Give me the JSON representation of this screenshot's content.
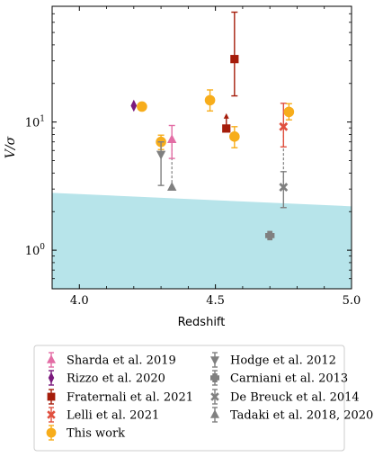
{
  "chart_data": {
    "type": "scatter",
    "xlabel": "Redshift",
    "ylabel": "V/σ",
    "xlim": [
      3.9,
      5.0
    ],
    "ylim": [
      0.5,
      80
    ],
    "yscale": "log",
    "x_ticks": [
      4.0,
      4.5,
      5.0
    ],
    "x_tick_labels": [
      "4.0",
      "4.5",
      "5.0"
    ],
    "y_ticks": [
      1,
      10
    ],
    "y_tick_labels": [
      "10^0",
      "10^1"
    ],
    "shaded_region": {
      "color": "#b7e4ea",
      "upper_boundary": [
        [
          3.9,
          2.8
        ],
        [
          5.0,
          2.2
        ]
      ]
    },
    "legend_placement": "below",
    "series": [
      {
        "name": "Sharda et al. 2019",
        "marker": "triangle-up",
        "color": "#e36da5",
        "points": [
          {
            "x": 4.34,
            "y": 7.3,
            "ylo": 5.2,
            "yhi": 9.4
          }
        ]
      },
      {
        "name": "Rizzo et al. 2020",
        "marker": "thin-diamond",
        "color": "#7b1a7d",
        "points": [
          {
            "x": 4.2,
            "y": 13.4
          }
        ]
      },
      {
        "name": "Fraternali et al. 2021",
        "marker": "square",
        "color": "#a51d0b",
        "points": [
          {
            "x": 4.57,
            "y": 31,
            "ylo": 16,
            "yhi": 72
          },
          {
            "x": 4.54,
            "y": 8.9,
            "lower_limit": true
          }
        ]
      },
      {
        "name": "Lelli et al. 2021",
        "marker": "X",
        "color": "#e0503f",
        "points": [
          {
            "x": 4.75,
            "y": 9.2,
            "ylo": 6.4,
            "yhi": 14
          }
        ]
      },
      {
        "name": "This work",
        "marker": "circle",
        "color": "#f7ad1b",
        "points": [
          {
            "x": 4.23,
            "y": 13.2
          },
          {
            "x": 4.3,
            "y": 7.0,
            "ylo": 6.1,
            "yhi": 7.9
          },
          {
            "x": 4.48,
            "y": 14.8,
            "ylo": 12.2,
            "yhi": 17.8
          },
          {
            "x": 4.57,
            "y": 7.7,
            "ylo": 6.3,
            "yhi": 9.2
          },
          {
            "x": 4.77,
            "y": 12.0,
            "ylo": 10.4,
            "yhi": 13.9
          }
        ]
      },
      {
        "name": "Hodge et al. 2012",
        "marker": "triangle-down",
        "color": "#808080",
        "points": [
          {
            "x": 4.3,
            "y": 5.6,
            "ylo": 3.2,
            "yhi": 7.0
          }
        ]
      },
      {
        "name": "Carniani et al. 2013",
        "marker": "plus",
        "color": "#808080",
        "points": [
          {
            "x": 4.7,
            "y": 1.3
          }
        ]
      },
      {
        "name": "De Breuck et al. 2014",
        "marker": "X",
        "color": "#808080",
        "points": [
          {
            "x": 4.75,
            "y": 3.1,
            "ylo": 2.15,
            "yhi": 4.1
          }
        ]
      },
      {
        "name": "Tadaki et al. 2018, 2020",
        "marker": "triangle-up",
        "color": "#808080",
        "points": [
          {
            "x": 4.34,
            "y": 3.1
          }
        ]
      }
    ],
    "dashed_connectors": [
      {
        "x": 4.34,
        "y_from": 3.1,
        "y_to": 7.3
      },
      {
        "x": 4.75,
        "y_from": 3.1,
        "y_to": 9.2
      }
    ]
  }
}
